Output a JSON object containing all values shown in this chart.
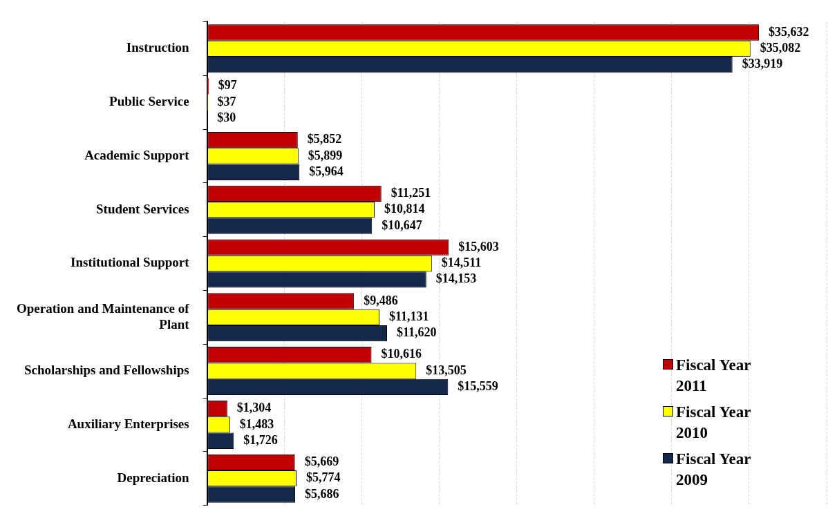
{
  "chart_data": {
    "type": "bar",
    "orientation": "horizontal",
    "categories": [
      "Instruction",
      "Public Service",
      "Academic Support",
      "Student Services",
      "Institutional Support",
      "Operation and Maintenance of Plant",
      "Scholarships and Fellowships",
      "Auxiliary Enterprises",
      "Depreciation"
    ],
    "series": [
      {
        "name": "Fiscal Year 2011",
        "color": "#c00000",
        "values": [
          35632,
          97,
          5852,
          11251,
          15603,
          9486,
          10616,
          1304,
          5669
        ],
        "value_labels": [
          "$35,632",
          "$97",
          "$5,852",
          "$11,251",
          "$15,603",
          "$9,486",
          "$10,616",
          "$1,304",
          "$5,669"
        ]
      },
      {
        "name": "Fiscal Year 2010",
        "color": "#ffff00",
        "values": [
          35082,
          37,
          5899,
          10814,
          14511,
          11131,
          13505,
          1483,
          5774
        ],
        "value_labels": [
          "$35,082",
          "$37",
          "$5,899",
          "$10,814",
          "$14,511",
          "$11,131",
          "$13,505",
          "$1,483",
          "$5,774"
        ]
      },
      {
        "name": "Fiscal Year 2009",
        "color": "#14284b",
        "values": [
          33919,
          30,
          5964,
          10647,
          14153,
          11620,
          15559,
          1726,
          5686
        ],
        "value_labels": [
          "$33,919",
          "$30",
          "$5,964",
          "$10,647",
          "$14,153",
          "$11,620",
          "$15,559",
          "$1,726",
          "$5,686"
        ]
      }
    ],
    "xlim": [
      0,
      40000
    ],
    "xticks": [
      {
        "value": 0,
        "label": null
      },
      {
        "value": 5000,
        "label": null
      },
      {
        "value": 10000,
        "label": null
      },
      {
        "value": 15000,
        "label": null
      },
      {
        "value": 20000,
        "label": null
      },
      {
        "value": 25000,
        "label": null
      },
      {
        "value": 30000,
        "label": null
      },
      {
        "value": 35000,
        "label": null
      },
      {
        "value": 40000,
        "label": null
      }
    ],
    "tick_labels": "y",
    "grid": "x",
    "legend": "bottom right"
  }
}
